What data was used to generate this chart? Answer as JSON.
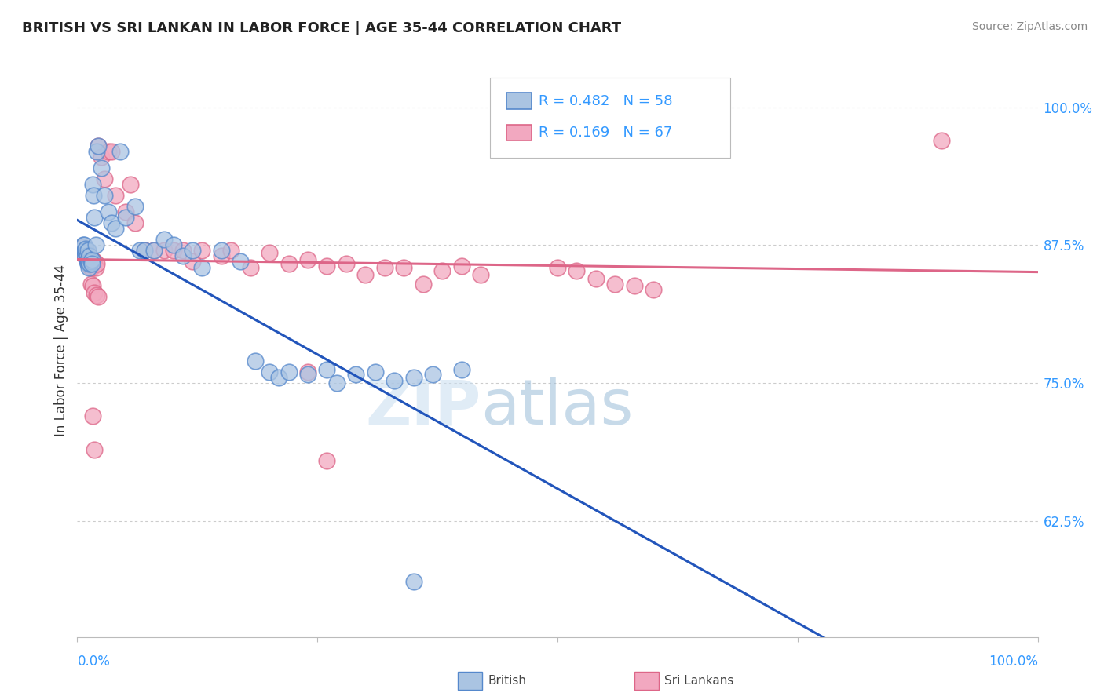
{
  "title": "BRITISH VS SRI LANKAN IN LABOR FORCE | AGE 35-44 CORRELATION CHART",
  "source": "Source: ZipAtlas.com",
  "ylabel": "In Labor Force | Age 35-44",
  "ytick_labels": [
    "100.0%",
    "87.5%",
    "75.0%",
    "62.5%"
  ],
  "ytick_values": [
    1.0,
    0.875,
    0.75,
    0.625
  ],
  "xlim": [
    0.0,
    1.0
  ],
  "ylim": [
    0.52,
    1.04
  ],
  "british_color": "#aac4e2",
  "srilankan_color": "#f2a8c0",
  "british_edge": "#5588cc",
  "srilankan_edge": "#dd6688",
  "british_line_color": "#2255bb",
  "srilankan_line_color": "#dd6688",
  "legend_R_british": "R = 0.482",
  "legend_N_british": "N = 58",
  "legend_R_srilankan": "R = 0.169",
  "legend_N_srilankan": "N = 67",
  "british_x": [
    0.005,
    0.006,
    0.007,
    0.007,
    0.008,
    0.008,
    0.009,
    0.009,
    0.01,
    0.01,
    0.011,
    0.011,
    0.011,
    0.012,
    0.012,
    0.013,
    0.013,
    0.014,
    0.015,
    0.015,
    0.016,
    0.017,
    0.018,
    0.019,
    0.02,
    0.022,
    0.025,
    0.028,
    0.032,
    0.036,
    0.04,
    0.045,
    0.05,
    0.06,
    0.065,
    0.07,
    0.08,
    0.09,
    0.1,
    0.11,
    0.12,
    0.13,
    0.15,
    0.17,
    0.185,
    0.2,
    0.21,
    0.22,
    0.24,
    0.26,
    0.27,
    0.29,
    0.31,
    0.33,
    0.35,
    0.37,
    0.4,
    0.35
  ],
  "british_y": [
    0.87,
    0.875,
    0.87,
    0.875,
    0.865,
    0.87,
    0.868,
    0.872,
    0.86,
    0.865,
    0.858,
    0.862,
    0.87,
    0.855,
    0.86,
    0.858,
    0.865,
    0.86,
    0.862,
    0.858,
    0.93,
    0.92,
    0.9,
    0.875,
    0.96,
    0.965,
    0.945,
    0.92,
    0.905,
    0.895,
    0.89,
    0.96,
    0.9,
    0.91,
    0.87,
    0.87,
    0.87,
    0.88,
    0.875,
    0.865,
    0.87,
    0.855,
    0.87,
    0.86,
    0.77,
    0.76,
    0.755,
    0.76,
    0.758,
    0.762,
    0.75,
    0.758,
    0.76,
    0.752,
    0.755,
    0.758,
    0.762,
    0.57
  ],
  "srilankan_x": [
    0.005,
    0.006,
    0.007,
    0.008,
    0.009,
    0.01,
    0.01,
    0.011,
    0.011,
    0.012,
    0.012,
    0.013,
    0.013,
    0.014,
    0.015,
    0.016,
    0.017,
    0.018,
    0.019,
    0.02,
    0.022,
    0.025,
    0.028,
    0.032,
    0.036,
    0.04,
    0.05,
    0.055,
    0.06,
    0.07,
    0.08,
    0.09,
    0.1,
    0.11,
    0.12,
    0.13,
    0.15,
    0.16,
    0.18,
    0.2,
    0.22,
    0.24,
    0.26,
    0.28,
    0.3,
    0.32,
    0.34,
    0.36,
    0.38,
    0.4,
    0.42,
    0.5,
    0.52,
    0.54,
    0.56,
    0.58,
    0.6,
    0.9,
    0.014,
    0.016,
    0.018,
    0.02,
    0.022,
    0.016,
    0.018,
    0.24,
    0.26
  ],
  "srilankan_y": [
    0.873,
    0.87,
    0.868,
    0.865,
    0.87,
    0.862,
    0.868,
    0.86,
    0.865,
    0.858,
    0.862,
    0.856,
    0.86,
    0.855,
    0.858,
    0.862,
    0.856,
    0.86,
    0.855,
    0.858,
    0.965,
    0.955,
    0.935,
    0.96,
    0.96,
    0.92,
    0.905,
    0.93,
    0.895,
    0.87,
    0.87,
    0.87,
    0.87,
    0.87,
    0.86,
    0.87,
    0.865,
    0.87,
    0.855,
    0.868,
    0.858,
    0.862,
    0.856,
    0.858,
    0.848,
    0.855,
    0.855,
    0.84,
    0.852,
    0.856,
    0.848,
    0.855,
    0.852,
    0.845,
    0.84,
    0.838,
    0.835,
    0.97,
    0.84,
    0.838,
    0.832,
    0.83,
    0.828,
    0.72,
    0.69,
    0.76,
    0.68
  ]
}
